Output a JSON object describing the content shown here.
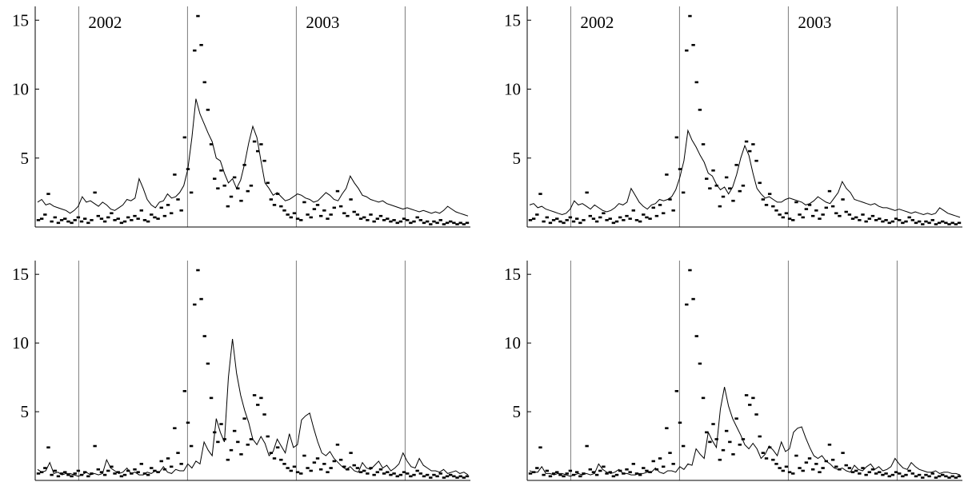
{
  "chart_data": [
    {
      "type": "line",
      "panel": "top-left",
      "y_ticks": [
        {
          "value": 5,
          "label": "5"
        },
        {
          "value": 10,
          "label": "10"
        },
        {
          "value": 15,
          "label": "15"
        }
      ],
      "ylim": [
        0,
        16
      ],
      "year_labels": [
        {
          "label": "2002",
          "x": 0.1
        },
        {
          "label": "2003",
          "x": 0.6
        }
      ],
      "separators": [
        0.1,
        0.35,
        0.6,
        0.85
      ],
      "scatter_y": [
        0.5,
        0.6,
        0.9,
        2.4,
        0.4,
        0.7,
        0.3,
        0.5,
        0.6,
        0.4,
        0.3,
        0.5,
        0.7,
        0.4,
        0.6,
        0.3,
        0.5,
        2.5,
        0.8,
        0.6,
        0.4,
        0.7,
        1.0,
        0.5,
        0.6,
        0.3,
        0.4,
        0.7,
        0.5,
        0.8,
        0.6,
        1.2,
        0.5,
        0.4,
        0.9,
        0.7,
        0.6,
        1.4,
        0.8,
        1.6,
        1.0,
        3.8,
        2.0,
        1.2,
        6.5,
        4.2,
        2.5,
        12.8,
        15.3,
        13.2,
        10.5,
        8.5,
        6.0,
        3.5,
        2.8,
        4.1,
        3.0,
        1.5,
        2.2,
        3.6,
        2.8,
        1.9,
        4.5,
        2.6,
        3.0,
        6.2,
        5.5,
        6.0,
        4.8,
        3.2,
        2.0,
        1.6,
        2.4,
        1.5,
        1.2,
        0.9,
        0.7,
        1.0,
        0.6,
        0.5,
        1.8,
        0.9,
        0.7,
        1.3,
        1.6,
        0.8,
        1.2,
        0.6,
        0.9,
        1.4,
        2.6,
        1.5,
        1.0,
        0.8,
        2.0,
        1.1,
        0.9,
        0.6,
        0.7,
        0.5,
        0.9,
        0.4,
        0.6,
        0.8,
        0.5,
        0.6,
        0.4,
        0.5,
        0.3,
        0.4,
        0.6,
        0.5,
        0.3,
        0.4,
        0.7,
        0.5,
        0.3,
        0.4,
        0.2,
        0.4,
        0.3,
        0.5,
        0.2,
        0.3,
        0.4,
        0.3,
        0.2,
        0.3,
        0.2,
        0.3
      ],
      "line_y": [
        1.8,
        2.0,
        1.6,
        1.7,
        1.5,
        1.4,
        1.3,
        1.2,
        1.0,
        1.2,
        1.5,
        2.2,
        1.8,
        1.9,
        1.7,
        1.5,
        1.8,
        1.6,
        1.3,
        1.2,
        1.4,
        1.6,
        2.0,
        1.9,
        2.1,
        3.5,
        2.8,
        2.0,
        1.6,
        1.4,
        1.8,
        1.9,
        2.4,
        2.1,
        2.2,
        2.5,
        3.0,
        4.2,
        6.5,
        9.3,
        8.2,
        7.5,
        6.8,
        6.2,
        5.0,
        4.8,
        3.9,
        3.2,
        3.5,
        2.8,
        3.4,
        4.6,
        6.1,
        7.3,
        6.5,
        4.8,
        3.2,
        2.8,
        2.3,
        2.5,
        2.2,
        1.9,
        2.0,
        2.2,
        2.4,
        2.3,
        2.1,
        2.0,
        1.8,
        1.9,
        2.2,
        2.5,
        2.3,
        2.0,
        1.9,
        2.4,
        2.8,
        3.7,
        3.2,
        2.8,
        2.3,
        2.2,
        2.0,
        1.9,
        1.8,
        1.9,
        1.7,
        1.6,
        1.5,
        1.4,
        1.3,
        1.4,
        1.3,
        1.2,
        1.1,
        1.2,
        1.1,
        1.0,
        1.1,
        1.0,
        1.2,
        1.5,
        1.3,
        1.1,
        1.0,
        0.9,
        0.8
      ]
    },
    {
      "type": "line",
      "panel": "top-right",
      "y_ticks": [
        {
          "value": 5,
          "label": "5"
        },
        {
          "value": 10,
          "label": "10"
        },
        {
          "value": 15,
          "label": "15"
        }
      ],
      "ylim": [
        0,
        16
      ],
      "year_labels": [
        {
          "label": "2002",
          "x": 0.1
        },
        {
          "label": "2003",
          "x": 0.6
        }
      ],
      "separators": [
        0.1,
        0.35,
        0.6,
        0.85
      ],
      "scatter_y": [
        0.5,
        0.6,
        0.9,
        2.4,
        0.4,
        0.7,
        0.3,
        0.5,
        0.6,
        0.4,
        0.3,
        0.5,
        0.7,
        0.4,
        0.6,
        0.3,
        0.5,
        2.5,
        0.8,
        0.6,
        0.4,
        0.7,
        1.0,
        0.5,
        0.6,
        0.3,
        0.4,
        0.7,
        0.5,
        0.8,
        0.6,
        1.2,
        0.5,
        0.4,
        0.9,
        0.7,
        0.6,
        1.4,
        0.8,
        1.6,
        1.0,
        3.8,
        2.0,
        1.2,
        6.5,
        4.2,
        2.5,
        12.8,
        15.3,
        13.2,
        10.5,
        8.5,
        6.0,
        3.5,
        2.8,
        4.1,
        3.0,
        1.5,
        2.2,
        3.6,
        2.8,
        1.9,
        4.5,
        2.6,
        3.0,
        6.2,
        5.5,
        6.0,
        4.8,
        3.2,
        2.0,
        1.6,
        2.4,
        1.5,
        1.2,
        0.9,
        0.7,
        1.0,
        0.6,
        0.5,
        1.8,
        0.9,
        0.7,
        1.3,
        1.6,
        0.8,
        1.2,
        0.6,
        0.9,
        1.4,
        2.6,
        1.5,
        1.0,
        0.8,
        2.0,
        1.1,
        0.9,
        0.6,
        0.7,
        0.5,
        0.9,
        0.4,
        0.6,
        0.8,
        0.5,
        0.6,
        0.4,
        0.5,
        0.3,
        0.4,
        0.6,
        0.5,
        0.3,
        0.4,
        0.7,
        0.5,
        0.3,
        0.4,
        0.2,
        0.4,
        0.3,
        0.5,
        0.2,
        0.3,
        0.4,
        0.3,
        0.2,
        0.3,
        0.2,
        0.3
      ],
      "line_y": [
        1.6,
        1.7,
        1.4,
        1.5,
        1.3,
        1.2,
        1.1,
        1.0,
        0.9,
        1.0,
        1.3,
        1.9,
        1.6,
        1.7,
        1.5,
        1.3,
        1.6,
        1.4,
        1.2,
        1.1,
        1.2,
        1.4,
        1.7,
        1.6,
        1.8,
        2.8,
        2.3,
        1.8,
        1.5,
        1.3,
        1.6,
        1.7,
        2.0,
        1.9,
        2.0,
        2.2,
        2.7,
        3.6,
        4.8,
        7.0,
        6.3,
        5.8,
        5.2,
        4.7,
        3.9,
        3.7,
        3.1,
        2.7,
        2.9,
        2.4,
        2.9,
        3.8,
        5.0,
        5.9,
        5.2,
        3.9,
        2.8,
        2.4,
        2.1,
        2.2,
        2.0,
        1.8,
        1.8,
        2.0,
        2.1,
        2.0,
        1.9,
        1.8,
        1.6,
        1.7,
        1.9,
        2.2,
        2.0,
        1.8,
        1.7,
        2.1,
        2.5,
        3.3,
        2.8,
        2.5,
        2.0,
        1.9,
        1.8,
        1.7,
        1.6,
        1.7,
        1.5,
        1.4,
        1.4,
        1.3,
        1.2,
        1.3,
        1.2,
        1.1,
        1.0,
        1.1,
        1.0,
        0.9,
        1.0,
        0.9,
        1.0,
        1.4,
        1.2,
        1.0,
        0.9,
        0.8,
        0.7
      ]
    },
    {
      "type": "line",
      "panel": "bottom-left",
      "y_ticks": [
        {
          "value": 5,
          "label": "5"
        },
        {
          "value": 10,
          "label": "10"
        },
        {
          "value": 15,
          "label": "15"
        }
      ],
      "ylim": [
        0,
        16
      ],
      "year_labels": [],
      "separators": [
        0.1,
        0.35,
        0.6,
        0.85
      ],
      "scatter_y": [
        0.5,
        0.6,
        0.9,
        2.4,
        0.4,
        0.7,
        0.3,
        0.5,
        0.6,
        0.4,
        0.3,
        0.5,
        0.7,
        0.4,
        0.6,
        0.3,
        0.5,
        2.5,
        0.8,
        0.6,
        0.4,
        0.7,
        1.0,
        0.5,
        0.6,
        0.3,
        0.4,
        0.7,
        0.5,
        0.8,
        0.6,
        1.2,
        0.5,
        0.4,
        0.9,
        0.7,
        0.6,
        1.4,
        0.8,
        1.6,
        1.0,
        3.8,
        2.0,
        1.2,
        6.5,
        4.2,
        2.5,
        12.8,
        15.3,
        13.2,
        10.5,
        8.5,
        6.0,
        3.5,
        2.8,
        4.1,
        3.0,
        1.5,
        2.2,
        3.6,
        2.8,
        1.9,
        4.5,
        2.6,
        3.0,
        6.2,
        5.5,
        6.0,
        4.8,
        3.2,
        2.0,
        1.6,
        2.4,
        1.5,
        1.2,
        0.9,
        0.7,
        1.0,
        0.6,
        0.5,
        1.8,
        0.9,
        0.7,
        1.3,
        1.6,
        0.8,
        1.2,
        0.6,
        0.9,
        1.4,
        2.6,
        1.5,
        1.0,
        0.8,
        2.0,
        1.1,
        0.9,
        0.6,
        0.7,
        0.5,
        0.9,
        0.4,
        0.6,
        0.8,
        0.5,
        0.6,
        0.4,
        0.5,
        0.3,
        0.4,
        0.6,
        0.5,
        0.3,
        0.4,
        0.7,
        0.5,
        0.3,
        0.4,
        0.2,
        0.4,
        0.3,
        0.5,
        0.2,
        0.3,
        0.4,
        0.3,
        0.2,
        0.3,
        0.2,
        0.3
      ],
      "line_y": [
        0.8,
        0.6,
        0.7,
        1.3,
        0.5,
        0.6,
        0.4,
        0.5,
        0.5,
        0.4,
        0.3,
        0.4,
        0.6,
        0.4,
        0.5,
        0.4,
        0.5,
        1.5,
        0.9,
        0.7,
        0.5,
        0.6,
        0.9,
        0.5,
        0.6,
        0.4,
        0.4,
        0.6,
        0.5,
        0.7,
        0.6,
        1.0,
        0.6,
        0.5,
        0.8,
        0.7,
        0.7,
        1.2,
        0.9,
        1.4,
        1.2,
        2.8,
        2.2,
        1.8,
        4.5,
        3.5,
        2.8,
        7.5,
        10.3,
        7.8,
        6.2,
        5.1,
        4.2,
        3.0,
        2.6,
        3.2,
        2.7,
        1.8,
        2.1,
        3.0,
        2.5,
        2.0,
        3.4,
        2.4,
        2.6,
        4.4,
        4.7,
        4.9,
        3.8,
        2.8,
        2.0,
        1.8,
        2.1,
        1.6,
        1.3,
        1.0,
        0.8,
        1.0,
        0.7,
        0.6,
        1.3,
        0.9,
        0.8,
        1.1,
        1.4,
        0.9,
        1.1,
        0.7,
        0.9,
        1.2,
        2.0,
        1.4,
        1.0,
        0.9,
        1.6,
        1.1,
        0.9,
        0.7,
        0.7,
        0.6,
        0.8,
        0.5,
        0.6,
        0.7,
        0.5,
        0.6,
        0.4
      ]
    },
    {
      "type": "line",
      "panel": "bottom-right",
      "y_ticks": [
        {
          "value": 5,
          "label": "5"
        },
        {
          "value": 10,
          "label": "10"
        },
        {
          "value": 15,
          "label": "15"
        }
      ],
      "ylim": [
        0,
        16
      ],
      "year_labels": [],
      "separators": [
        0.1,
        0.35,
        0.6,
        0.85
      ],
      "scatter_y": [
        0.5,
        0.6,
        0.9,
        2.4,
        0.4,
        0.7,
        0.3,
        0.5,
        0.6,
        0.4,
        0.3,
        0.5,
        0.7,
        0.4,
        0.6,
        0.3,
        0.5,
        2.5,
        0.8,
        0.6,
        0.4,
        0.7,
        1.0,
        0.5,
        0.6,
        0.3,
        0.4,
        0.7,
        0.5,
        0.8,
        0.6,
        1.2,
        0.5,
        0.4,
        0.9,
        0.7,
        0.6,
        1.4,
        0.8,
        1.6,
        1.0,
        3.8,
        2.0,
        1.2,
        6.5,
        4.2,
        2.5,
        12.8,
        15.3,
        13.2,
        10.5,
        8.5,
        6.0,
        3.5,
        2.8,
        4.1,
        3.0,
        1.5,
        2.2,
        3.6,
        2.8,
        1.9,
        4.5,
        2.6,
        3.0,
        6.2,
        5.5,
        6.0,
        4.8,
        3.2,
        2.0,
        1.6,
        2.4,
        1.5,
        1.2,
        0.9,
        0.7,
        1.0,
        0.6,
        0.5,
        1.8,
        0.9,
        0.7,
        1.3,
        1.6,
        0.8,
        1.2,
        0.6,
        0.9,
        1.4,
        2.6,
        1.5,
        1.0,
        0.8,
        2.0,
        1.1,
        0.9,
        0.6,
        0.7,
        0.5,
        0.9,
        0.4,
        0.6,
        0.8,
        0.5,
        0.6,
        0.4,
        0.5,
        0.3,
        0.4,
        0.6,
        0.5,
        0.3,
        0.4,
        0.7,
        0.5,
        0.3,
        0.4,
        0.2,
        0.4,
        0.3,
        0.5,
        0.2,
        0.3,
        0.4,
        0.3,
        0.2,
        0.3,
        0.2,
        0.3
      ],
      "line_y": [
        0.7,
        0.6,
        0.6,
        1.0,
        0.5,
        0.5,
        0.4,
        0.5,
        0.5,
        0.4,
        0.3,
        0.4,
        0.5,
        0.4,
        0.5,
        0.4,
        0.5,
        1.2,
        0.8,
        0.6,
        0.5,
        0.6,
        0.8,
        0.5,
        0.5,
        0.4,
        0.4,
        0.5,
        0.5,
        0.6,
        0.6,
        0.9,
        0.6,
        0.5,
        0.7,
        0.7,
        0.6,
        1.0,
        0.8,
        1.2,
        1.1,
        2.3,
        1.9,
        1.6,
        3.5,
        2.9,
        2.4,
        5.2,
        6.8,
        5.4,
        4.5,
        3.9,
        3.3,
        2.6,
        2.3,
        2.7,
        2.3,
        1.6,
        1.9,
        2.5,
        2.2,
        1.8,
        2.8,
        2.1,
        2.3,
        3.5,
        3.8,
        3.9,
        3.1,
        2.4,
        1.8,
        1.6,
        1.8,
        1.4,
        1.2,
        0.9,
        0.8,
        0.9,
        0.7,
        0.6,
        1.1,
        0.8,
        0.7,
        1.0,
        1.2,
        0.8,
        1.0,
        0.7,
        0.8,
        1.0,
        1.6,
        1.2,
        0.9,
        0.8,
        1.3,
        1.0,
        0.8,
        0.7,
        0.6,
        0.6,
        0.7,
        0.5,
        0.6,
        0.6,
        0.5,
        0.5,
        0.4
      ]
    }
  ]
}
